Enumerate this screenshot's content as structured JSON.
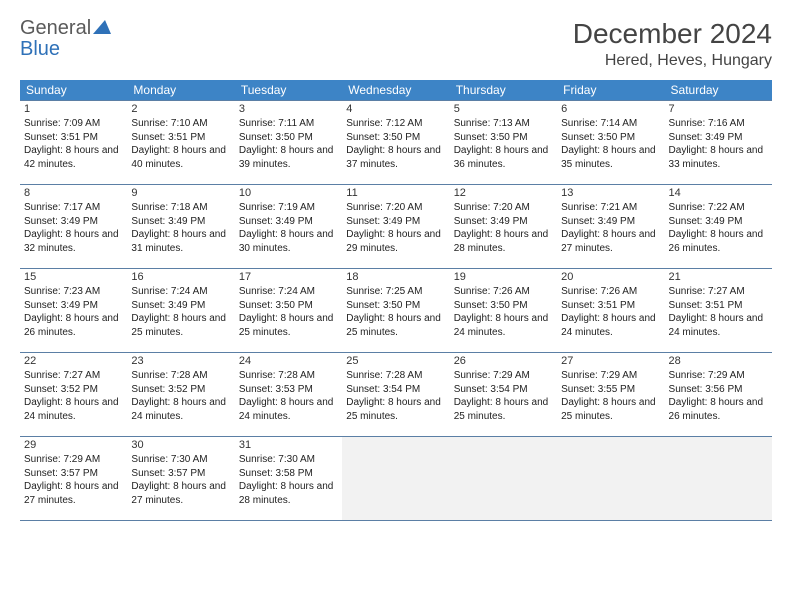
{
  "logo": {
    "text1": "General",
    "text2": "Blue"
  },
  "title": "December 2024",
  "location": "Hered, Heves, Hungary",
  "weekdays": [
    "Sunday",
    "Monday",
    "Tuesday",
    "Wednesday",
    "Thursday",
    "Friday",
    "Saturday"
  ],
  "header_bg": "#3d84c6",
  "border_color": "#5b7fa5",
  "empty_bg": "#f2f2f2",
  "days": [
    {
      "n": 1,
      "rise": "7:09 AM",
      "set": "3:51 PM",
      "dl": "8 hours and 42 minutes."
    },
    {
      "n": 2,
      "rise": "7:10 AM",
      "set": "3:51 PM",
      "dl": "8 hours and 40 minutes."
    },
    {
      "n": 3,
      "rise": "7:11 AM",
      "set": "3:50 PM",
      "dl": "8 hours and 39 minutes."
    },
    {
      "n": 4,
      "rise": "7:12 AM",
      "set": "3:50 PM",
      "dl": "8 hours and 37 minutes."
    },
    {
      "n": 5,
      "rise": "7:13 AM",
      "set": "3:50 PM",
      "dl": "8 hours and 36 minutes."
    },
    {
      "n": 6,
      "rise": "7:14 AM",
      "set": "3:50 PM",
      "dl": "8 hours and 35 minutes."
    },
    {
      "n": 7,
      "rise": "7:16 AM",
      "set": "3:49 PM",
      "dl": "8 hours and 33 minutes."
    },
    {
      "n": 8,
      "rise": "7:17 AM",
      "set": "3:49 PM",
      "dl": "8 hours and 32 minutes."
    },
    {
      "n": 9,
      "rise": "7:18 AM",
      "set": "3:49 PM",
      "dl": "8 hours and 31 minutes."
    },
    {
      "n": 10,
      "rise": "7:19 AM",
      "set": "3:49 PM",
      "dl": "8 hours and 30 minutes."
    },
    {
      "n": 11,
      "rise": "7:20 AM",
      "set": "3:49 PM",
      "dl": "8 hours and 29 minutes."
    },
    {
      "n": 12,
      "rise": "7:20 AM",
      "set": "3:49 PM",
      "dl": "8 hours and 28 minutes."
    },
    {
      "n": 13,
      "rise": "7:21 AM",
      "set": "3:49 PM",
      "dl": "8 hours and 27 minutes."
    },
    {
      "n": 14,
      "rise": "7:22 AM",
      "set": "3:49 PM",
      "dl": "8 hours and 26 minutes."
    },
    {
      "n": 15,
      "rise": "7:23 AM",
      "set": "3:49 PM",
      "dl": "8 hours and 26 minutes."
    },
    {
      "n": 16,
      "rise": "7:24 AM",
      "set": "3:49 PM",
      "dl": "8 hours and 25 minutes."
    },
    {
      "n": 17,
      "rise": "7:24 AM",
      "set": "3:50 PM",
      "dl": "8 hours and 25 minutes."
    },
    {
      "n": 18,
      "rise": "7:25 AM",
      "set": "3:50 PM",
      "dl": "8 hours and 25 minutes."
    },
    {
      "n": 19,
      "rise": "7:26 AM",
      "set": "3:50 PM",
      "dl": "8 hours and 24 minutes."
    },
    {
      "n": 20,
      "rise": "7:26 AM",
      "set": "3:51 PM",
      "dl": "8 hours and 24 minutes."
    },
    {
      "n": 21,
      "rise": "7:27 AM",
      "set": "3:51 PM",
      "dl": "8 hours and 24 minutes."
    },
    {
      "n": 22,
      "rise": "7:27 AM",
      "set": "3:52 PM",
      "dl": "8 hours and 24 minutes."
    },
    {
      "n": 23,
      "rise": "7:28 AM",
      "set": "3:52 PM",
      "dl": "8 hours and 24 minutes."
    },
    {
      "n": 24,
      "rise": "7:28 AM",
      "set": "3:53 PM",
      "dl": "8 hours and 24 minutes."
    },
    {
      "n": 25,
      "rise": "7:28 AM",
      "set": "3:54 PM",
      "dl": "8 hours and 25 minutes."
    },
    {
      "n": 26,
      "rise": "7:29 AM",
      "set": "3:54 PM",
      "dl": "8 hours and 25 minutes."
    },
    {
      "n": 27,
      "rise": "7:29 AM",
      "set": "3:55 PM",
      "dl": "8 hours and 25 minutes."
    },
    {
      "n": 28,
      "rise": "7:29 AM",
      "set": "3:56 PM",
      "dl": "8 hours and 26 minutes."
    },
    {
      "n": 29,
      "rise": "7:29 AM",
      "set": "3:57 PM",
      "dl": "8 hours and 27 minutes."
    },
    {
      "n": 30,
      "rise": "7:30 AM",
      "set": "3:57 PM",
      "dl": "8 hours and 27 minutes."
    },
    {
      "n": 31,
      "rise": "7:30 AM",
      "set": "3:58 PM",
      "dl": "8 hours and 28 minutes."
    }
  ],
  "labels": {
    "sunrise": "Sunrise:",
    "sunset": "Sunset:",
    "daylight": "Daylight:"
  }
}
